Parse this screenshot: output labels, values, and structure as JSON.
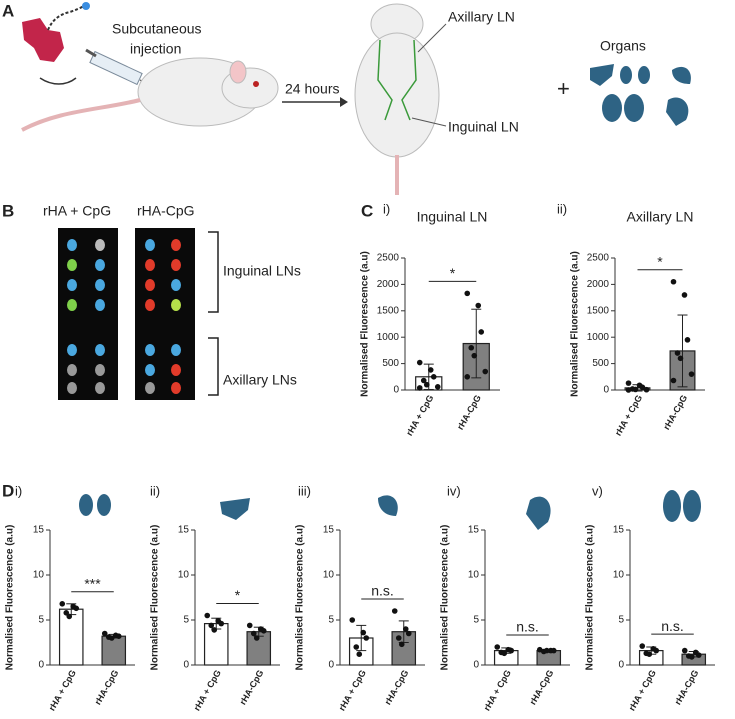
{
  "panels": {
    "a": "A",
    "b": "B",
    "c": "C",
    "d": "D"
  },
  "schematic": {
    "injection": [
      "Subcutaneous",
      "injection"
    ],
    "time": "24 hours",
    "axillary": "Axillary LN",
    "inguinal": "Inguinal LN",
    "organs": "Organs",
    "plus": "+"
  },
  "imaging": {
    "columns": [
      "rHA + CpG",
      "rHA-CpG"
    ],
    "rows": [
      "Inguinal LNs",
      "Axillary  LNs"
    ]
  },
  "chart_data": [
    {
      "type": "bar",
      "subtitle": "i)",
      "title": "Inguinal LN",
      "ylabel": "Normalised  Fluorescence (a.u)",
      "categories": [
        "rHA + CpG",
        "rHA-CpG"
      ],
      "values": [
        250,
        880
      ],
      "errors": [
        240,
        650
      ],
      "points": [
        [
          520,
          380,
          250,
          180,
          100,
          60,
          40
        ],
        [
          1830,
          1600,
          1100,
          800,
          650,
          350,
          250
        ]
      ],
      "colors": [
        "#ffffff",
        "#808080"
      ],
      "ylim": [
        0,
        2500
      ],
      "yticks": [
        0,
        500,
        1000,
        1500,
        2000,
        2500
      ],
      "significance": "*"
    },
    {
      "type": "bar",
      "subtitle": "ii)",
      "title": "Axillary LN",
      "ylabel": "Normalised  Fluorescence (a.u)",
      "categories": [
        "rHA + CpG",
        "rHA-CpG"
      ],
      "values": [
        40,
        740
      ],
      "errors": [
        60,
        680
      ],
      "points": [
        [
          130,
          90,
          50,
          20,
          10,
          5,
          0
        ],
        [
          2050,
          1800,
          950,
          700,
          600,
          300,
          180
        ]
      ],
      "colors": [
        "#ffffff",
        "#808080"
      ],
      "ylim": [
        0,
        2500
      ],
      "yticks": [
        0,
        500,
        1000,
        1500,
        2000,
        2500
      ],
      "significance": "*"
    },
    {
      "type": "bar",
      "subtitle": "i)",
      "ylabel": "Normalised  Fluorescence (a.u)",
      "categories": [
        "rHA + CpG",
        "rHA-CpG"
      ],
      "values": [
        6.2,
        3.2
      ],
      "errors": [
        0.6,
        0.2
      ],
      "points": [
        [
          6.8,
          6.5,
          6.3,
          5.8,
          5.4
        ],
        [
          3.5,
          3.3,
          3.2,
          3.1,
          3.0
        ]
      ],
      "colors": [
        "#ffffff",
        "#808080"
      ],
      "ylim": [
        0,
        15
      ],
      "yticks": [
        0,
        5,
        10,
        15
      ],
      "significance": "***"
    },
    {
      "type": "bar",
      "subtitle": "ii)",
      "ylabel": "Normalised  Fluorescence (a.u)",
      "categories": [
        "rHA + CpG",
        "rHA-CpG"
      ],
      "values": [
        4.6,
        3.7
      ],
      "errors": [
        0.6,
        0.5
      ],
      "points": [
        [
          5.5,
          4.9,
          4.6,
          4.4,
          3.9
        ],
        [
          4.4,
          4.0,
          3.8,
          3.5,
          3.0
        ]
      ],
      "colors": [
        "#ffffff",
        "#808080"
      ],
      "ylim": [
        0,
        15
      ],
      "yticks": [
        0,
        5,
        10,
        15
      ],
      "significance": "*"
    },
    {
      "type": "bar",
      "subtitle": "iii)",
      "ylabel": "Normalised  Fluorescence (a.u)",
      "categories": [
        "rHA + CpG",
        "rHA-CpG"
      ],
      "values": [
        3.0,
        3.7
      ],
      "errors": [
        1.4,
        1.2
      ],
      "points": [
        [
          5.0,
          3.6,
          3.0,
          2.0,
          1.2
        ],
        [
          6.0,
          4.0,
          3.5,
          3.0,
          2.3
        ]
      ],
      "colors": [
        "#ffffff",
        "#808080"
      ],
      "ylim": [
        0,
        15
      ],
      "yticks": [
        0,
        5,
        10,
        15
      ],
      "significance": "n.s."
    },
    {
      "type": "bar",
      "subtitle": "iv)",
      "ylabel": "Normalised  Fluorescence (a.u)",
      "categories": [
        "rHA + CpG",
        "rHA-CpG"
      ],
      "values": [
        1.6,
        1.6
      ],
      "errors": [
        0.3,
        0.1
      ],
      "points": [
        [
          2.0,
          1.7,
          1.6,
          1.4,
          1.3
        ],
        [
          1.7,
          1.6,
          1.6,
          1.5,
          1.6
        ]
      ],
      "colors": [
        "#ffffff",
        "#808080"
      ],
      "ylim": [
        0,
        15
      ],
      "yticks": [
        0,
        5,
        10,
        15
      ],
      "significance": "n.s."
    },
    {
      "type": "bar",
      "subtitle": "v)",
      "ylabel": "Normalised  Fluorescence (a.u)",
      "categories": [
        "rHA + CpG",
        "rHA-CpG"
      ],
      "values": [
        1.6,
        1.2
      ],
      "errors": [
        0.4,
        0.3
      ],
      "points": [
        [
          2.1,
          1.8,
          1.6,
          1.3,
          1.2
        ],
        [
          1.6,
          1.4,
          1.1,
          1.0,
          0.9
        ]
      ],
      "colors": [
        "#ffffff",
        "#808080"
      ],
      "ylim": [
        0,
        15
      ],
      "yticks": [
        0,
        5,
        10,
        15
      ],
      "significance": "n.s."
    }
  ]
}
